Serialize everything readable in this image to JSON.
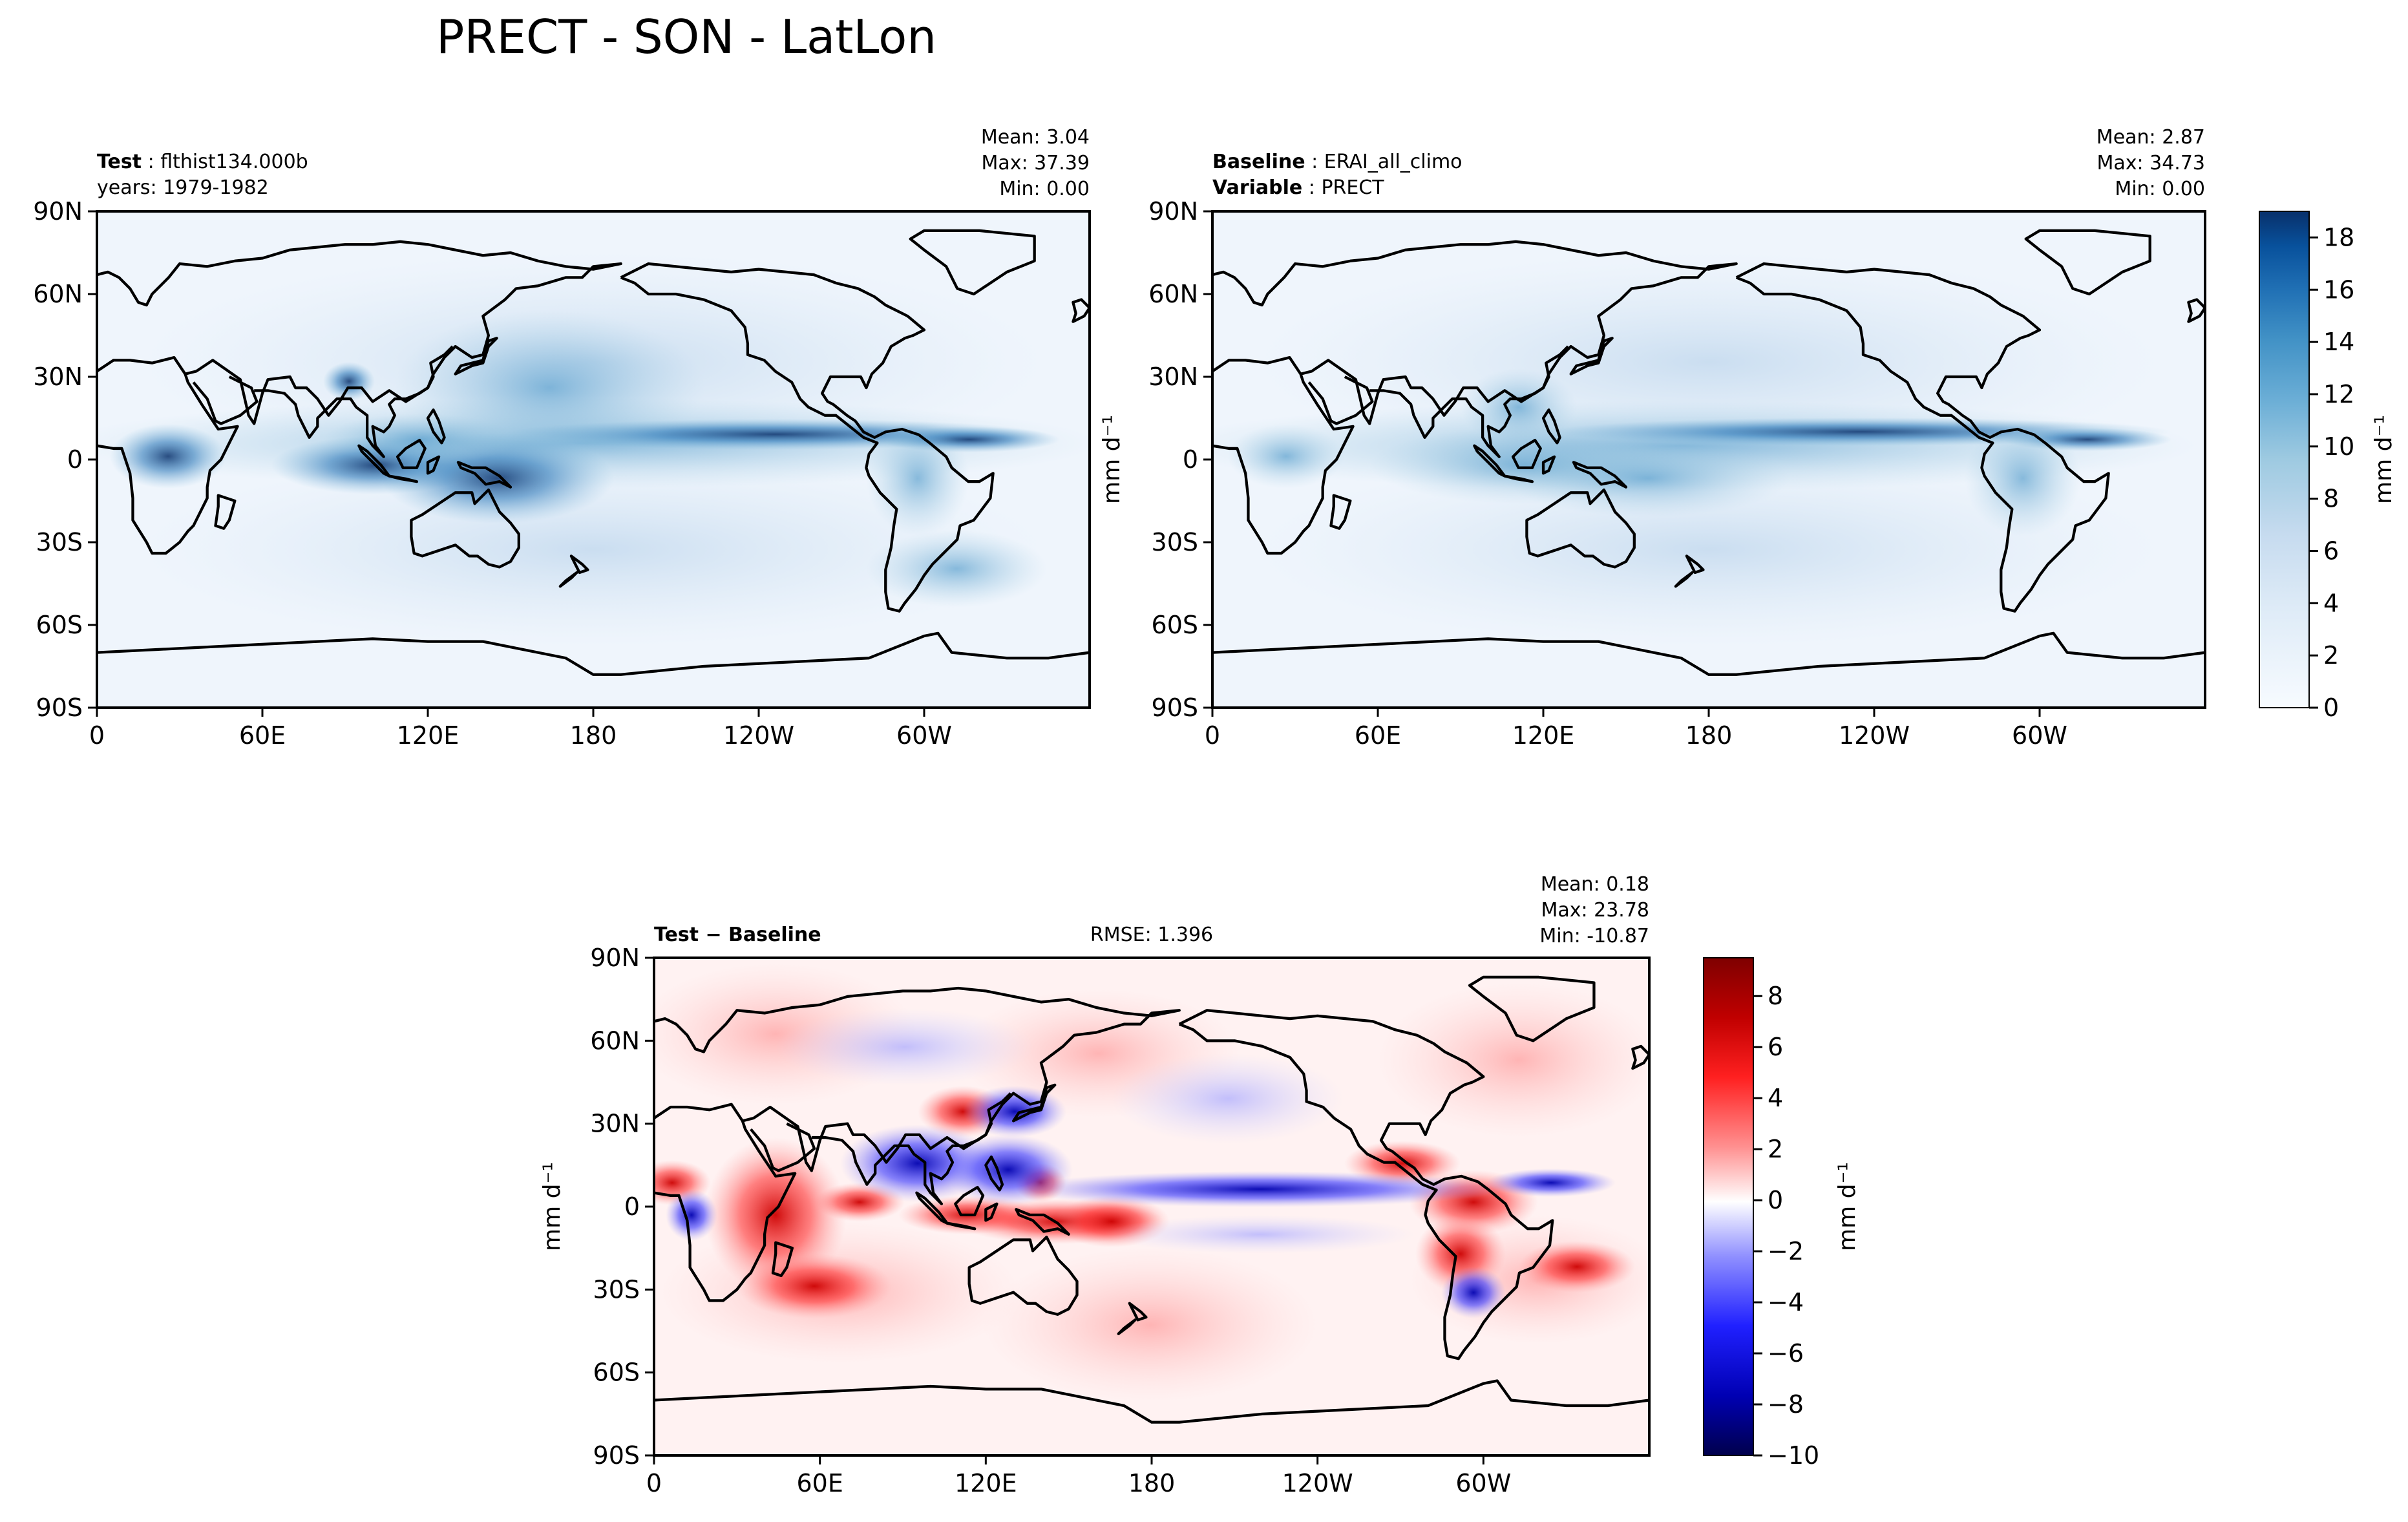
{
  "figure": {
    "title": "PRECT - SON - LatLon"
  },
  "chart_data": [
    {
      "type": "heatmap",
      "panel": "test",
      "label_left_bold": "Test",
      "label_left_value": "flthist134.000b",
      "label_left_line2": "years: 1979-1982",
      "stats": [
        "Mean:  3.04",
        "Max: 37.39",
        "Min:  0.00"
      ],
      "x_ticks": [
        "0",
        "60E",
        "120E",
        "180",
        "120W",
        "60W"
      ],
      "y_ticks": [
        "90N",
        "60N",
        "30N",
        "0",
        "30S",
        "60S",
        "90S"
      ],
      "xlim": [
        0,
        360
      ],
      "ylim": [
        -90,
        90
      ],
      "colormap": "Blues",
      "zlim": [
        0,
        19
      ],
      "field": "precipitation rate, ITCZ maximum near equator, Indo-Pacific warm pool peaks"
    },
    {
      "type": "heatmap",
      "panel": "baseline",
      "label_left_bold": "Baseline",
      "label_left_value": "ERAI_all_climo",
      "label_left_line2_bold": "Variable",
      "label_left_line2_value": "PRECT",
      "stats": [
        "Mean:  2.87",
        "Max: 34.73",
        "Min:  0.00"
      ],
      "x_ticks": [
        "0",
        "60E",
        "120E",
        "180",
        "120W",
        "60W"
      ],
      "y_ticks": [
        "90N",
        "60N",
        "30N",
        "0",
        "30S",
        "60S",
        "90S"
      ],
      "ylabel": "mm d⁻¹",
      "xlim": [
        0,
        360
      ],
      "ylim": [
        -90,
        90
      ],
      "colormap": "Blues",
      "zlim": [
        0,
        19
      ],
      "colorbar_ticks": [
        "0",
        "2",
        "4",
        "6",
        "8",
        "10",
        "12",
        "14",
        "16",
        "18"
      ],
      "colorbar_label": "mm d⁻¹"
    },
    {
      "type": "heatmap",
      "panel": "difference",
      "label_left": "Test − Baseline",
      "label_center": "RMSE: 1.396",
      "stats": [
        "Mean:  0.18",
        "Max: 23.78",
        "Min: -10.87"
      ],
      "x_ticks": [
        "0",
        "60E",
        "120E",
        "180",
        "120W",
        "60W"
      ],
      "y_ticks": [
        "90N",
        "60N",
        "30N",
        "0",
        "30S",
        "60S",
        "90S"
      ],
      "ylabel": "mm d⁻¹",
      "xlim": [
        0,
        360
      ],
      "ylim": [
        -90,
        90
      ],
      "colormap": "seismic",
      "zlim": [
        -10,
        9.5
      ],
      "colorbar_ticks": [
        "−10",
        "−8",
        "−6",
        "−4",
        "−2",
        "0",
        "2",
        "4",
        "6",
        "8"
      ],
      "colorbar_label": "mm d⁻¹"
    }
  ]
}
